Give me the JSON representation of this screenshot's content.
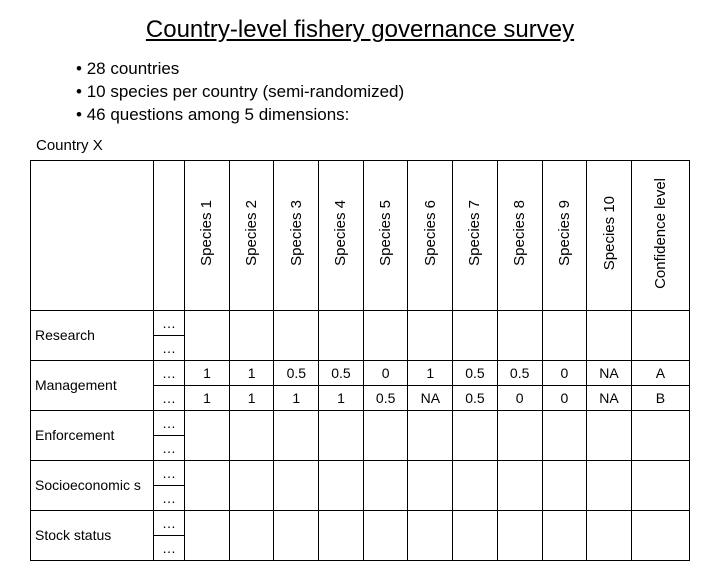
{
  "title": "Country-level fishery governance survey",
  "bullets": [
    "28 countries",
    "10 species per country (semi-randomized)",
    "46 questions among 5 dimensions:"
  ],
  "country_label": "Country X",
  "columns": [
    "Species 1",
    "Species 2",
    "Species 3",
    "Species 4",
    "Species 5",
    "Species 6",
    "Species 7",
    "Species 8",
    "Species 9",
    "Species 10",
    "Confidence level"
  ],
  "row_categories": [
    "Research",
    "Management",
    "Enforcement",
    "Socioeconomics",
    "Stock status"
  ],
  "row_categories_display": [
    "Research",
    "Management",
    "Enforcement",
    "Socioeconomic\ns",
    "Stock status"
  ],
  "dots_symbol": "…",
  "management_rows": [
    [
      "1",
      "1",
      "0.5",
      "0.5",
      "0",
      "1",
      "0.5",
      "0.5",
      "0",
      "NA",
      "A"
    ],
    [
      "1",
      "1",
      "1",
      "1",
      "0.5",
      "NA",
      "0.5",
      "0",
      "0",
      "NA",
      "B"
    ]
  ],
  "colors": {
    "text": "#000000",
    "bg": "#ffffff",
    "border": "#000000"
  }
}
